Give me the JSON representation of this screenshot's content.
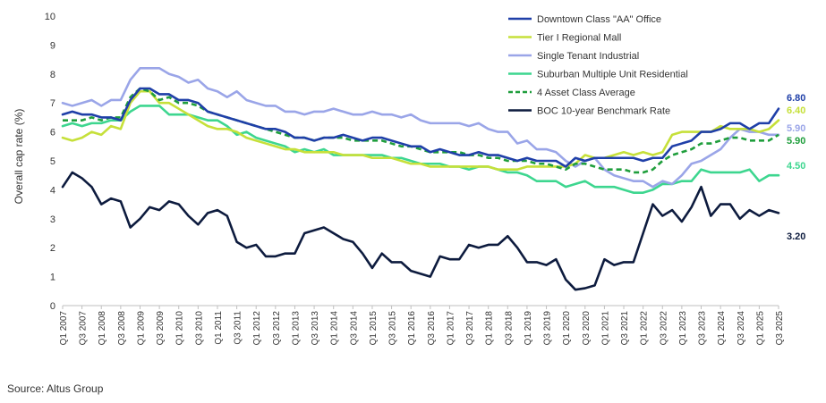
{
  "chart_data": {
    "type": "line",
    "ylabel": "Overall cap rate (%)",
    "ylim": [
      0,
      10
    ],
    "yticks": [
      "0",
      "1",
      "2",
      "3",
      "4",
      "5",
      "6",
      "7",
      "8",
      "9",
      "10"
    ],
    "x_start": "Q1 2007",
    "x_end": "Q3 2025",
    "tick_labels": [
      "Q1 2007",
      "Q3 2007",
      "Q1 2008",
      "Q3 2008",
      "Q1 2009",
      "Q3 2009",
      "Q1 2010",
      "Q3 2010",
      "Q1 2011",
      "Q3 2011",
      "Q1 2012",
      "Q3 2012",
      "Q1 2013",
      "Q3 2013",
      "Q1 2014",
      "Q3 2014",
      "Q1 2015",
      "Q3 2015",
      "Q1 2016",
      "Q3 2016",
      "Q1 2017",
      "Q3 2017",
      "Q1 2018",
      "Q3 2018",
      "Q1 2019",
      "Q3 2019",
      "Q1 2020",
      "Q3 2020",
      "Q1 2021",
      "Q3 2021",
      "Q1 2022",
      "Q3 2022",
      "Q1 2023",
      "Q3 2023",
      "Q1 2024",
      "Q3 2024",
      "Q1 2025",
      "Q3 2025"
    ],
    "legend_position": "top-right",
    "series": [
      {
        "name": "Downtown Class \"AA\" Office",
        "color": "#1f3fa8",
        "dash": "solid",
        "end_label": "6.80",
        "values": [
          6.6,
          6.7,
          6.6,
          6.6,
          6.5,
          6.5,
          6.4,
          7.1,
          7.5,
          7.5,
          7.3,
          7.3,
          7.1,
          7.1,
          7.0,
          6.7,
          6.6,
          6.5,
          6.4,
          6.3,
          6.2,
          6.1,
          6.1,
          6.0,
          5.8,
          5.8,
          5.7,
          5.8,
          5.8,
          5.9,
          5.8,
          5.7,
          5.8,
          5.8,
          5.7,
          5.6,
          5.5,
          5.5,
          5.3,
          5.4,
          5.3,
          5.2,
          5.2,
          5.3,
          5.2,
          5.2,
          5.1,
          5.0,
          5.1,
          5.0,
          5.0,
          5.0,
          4.8,
          5.1,
          5.0,
          5.1,
          5.1,
          5.1,
          5.1,
          5.1,
          5.0,
          5.1,
          5.1,
          5.5,
          5.6,
          5.7,
          6.0,
          6.0,
          6.1,
          6.3,
          6.3,
          6.1,
          6.3,
          6.3,
          6.8
        ]
      },
      {
        "name": "Tier I Regional Mall",
        "color": "#c6e03a",
        "dash": "solid",
        "end_label": "6.40",
        "values": [
          5.8,
          5.7,
          5.8,
          6.0,
          5.9,
          6.2,
          6.1,
          7.0,
          7.4,
          7.4,
          7.0,
          7.0,
          6.8,
          6.6,
          6.4,
          6.2,
          6.1,
          6.1,
          6.0,
          5.8,
          5.7,
          5.6,
          5.5,
          5.4,
          5.4,
          5.3,
          5.3,
          5.3,
          5.3,
          5.2,
          5.2,
          5.2,
          5.1,
          5.1,
          5.1,
          5.0,
          4.9,
          4.9,
          4.8,
          4.8,
          4.8,
          4.8,
          4.8,
          4.8,
          4.8,
          4.7,
          4.7,
          4.7,
          4.8,
          4.8,
          4.8,
          4.8,
          4.8,
          4.9,
          5.2,
          5.1,
          5.1,
          5.2,
          5.3,
          5.2,
          5.3,
          5.2,
          5.3,
          5.9,
          6.0,
          6.0,
          6.0,
          6.0,
          6.2,
          6.1,
          6.1,
          6.1,
          6.0,
          6.1,
          6.4
        ]
      },
      {
        "name": "Single Tenant Industrial",
        "color": "#9aa5e8",
        "dash": "solid",
        "end_label": "5.90",
        "values": [
          7.0,
          6.9,
          7.0,
          7.1,
          6.9,
          7.1,
          7.1,
          7.8,
          8.2,
          8.2,
          8.2,
          8.0,
          7.9,
          7.7,
          7.8,
          7.5,
          7.4,
          7.2,
          7.4,
          7.1,
          7.0,
          6.9,
          6.9,
          6.7,
          6.7,
          6.6,
          6.7,
          6.7,
          6.8,
          6.7,
          6.6,
          6.6,
          6.7,
          6.6,
          6.6,
          6.5,
          6.6,
          6.4,
          6.3,
          6.3,
          6.3,
          6.3,
          6.2,
          6.3,
          6.1,
          6.0,
          6.0,
          5.6,
          5.7,
          5.4,
          5.4,
          5.3,
          5.0,
          4.8,
          5.0,
          5.1,
          4.7,
          4.5,
          4.4,
          4.3,
          4.3,
          4.1,
          4.3,
          4.2,
          4.5,
          4.9,
          5.0,
          5.2,
          5.4,
          5.8,
          6.1,
          6.0,
          6.0,
          5.9,
          5.9
        ]
      },
      {
        "name": "Suburban Multiple Unit Residential",
        "color": "#3dd68f",
        "dash": "solid",
        "end_label": "4.50",
        "values": [
          6.2,
          6.3,
          6.2,
          6.3,
          6.3,
          6.4,
          6.4,
          6.7,
          6.9,
          6.9,
          6.9,
          6.6,
          6.6,
          6.6,
          6.5,
          6.4,
          6.4,
          6.2,
          5.9,
          6.0,
          5.8,
          5.7,
          5.6,
          5.5,
          5.3,
          5.4,
          5.3,
          5.4,
          5.2,
          5.2,
          5.2,
          5.2,
          5.2,
          5.2,
          5.1,
          5.1,
          5.0,
          4.9,
          4.9,
          4.9,
          4.8,
          4.8,
          4.7,
          4.8,
          4.8,
          4.7,
          4.6,
          4.6,
          4.5,
          4.3,
          4.3,
          4.3,
          4.1,
          4.2,
          4.3,
          4.1,
          4.1,
          4.1,
          4.0,
          3.9,
          3.9,
          4.0,
          4.2,
          4.2,
          4.3,
          4.3,
          4.7,
          4.6,
          4.6,
          4.6,
          4.6,
          4.7,
          4.3,
          4.5,
          4.5
        ]
      },
      {
        "name": "4 Asset Class Average",
        "color": "#1f9e3c",
        "dash": "dashed",
        "end_label": "5.90",
        "values": [
          6.4,
          6.4,
          6.4,
          6.5,
          6.4,
          6.5,
          6.5,
          7.2,
          7.5,
          7.4,
          7.1,
          7.2,
          7.0,
          7.0,
          6.9,
          6.7,
          6.6,
          6.5,
          6.4,
          6.3,
          6.2,
          6.1,
          6.0,
          5.9,
          5.8,
          5.8,
          5.7,
          5.8,
          5.8,
          5.8,
          5.7,
          5.7,
          5.7,
          5.7,
          5.6,
          5.5,
          5.5,
          5.4,
          5.3,
          5.3,
          5.3,
          5.3,
          5.2,
          5.2,
          5.1,
          5.1,
          5.0,
          5.0,
          5.0,
          4.9,
          4.9,
          4.8,
          4.7,
          4.9,
          4.9,
          4.8,
          4.7,
          4.7,
          4.7,
          4.6,
          4.6,
          4.7,
          5.0,
          5.2,
          5.3,
          5.4,
          5.6,
          5.6,
          5.7,
          5.8,
          5.8,
          5.7,
          5.7,
          5.7,
          5.9
        ]
      },
      {
        "name": "BOC 10-year Benchmark Rate",
        "color": "#0d1b3e",
        "dash": "solid",
        "end_label": "3.20",
        "values": [
          4.1,
          4.6,
          4.4,
          4.1,
          3.5,
          3.7,
          3.6,
          2.7,
          3.0,
          3.4,
          3.3,
          3.6,
          3.5,
          3.1,
          2.8,
          3.2,
          3.3,
          3.1,
          2.2,
          2.0,
          2.1,
          1.7,
          1.7,
          1.8,
          1.8,
          2.5,
          2.6,
          2.7,
          2.5,
          2.3,
          2.2,
          1.8,
          1.3,
          1.8,
          1.5,
          1.5,
          1.2,
          1.1,
          1.0,
          1.7,
          1.6,
          1.6,
          2.1,
          2.0,
          2.1,
          2.1,
          2.4,
          2.0,
          1.5,
          1.5,
          1.4,
          1.6,
          0.9,
          0.55,
          0.6,
          0.7,
          1.6,
          1.4,
          1.5,
          1.5,
          2.5,
          3.5,
          3.1,
          3.3,
          2.9,
          3.4,
          4.1,
          3.1,
          3.5,
          3.5,
          3.0,
          3.3,
          3.1,
          3.3,
          3.2
        ]
      }
    ]
  },
  "source": "Source:  Altus Group"
}
